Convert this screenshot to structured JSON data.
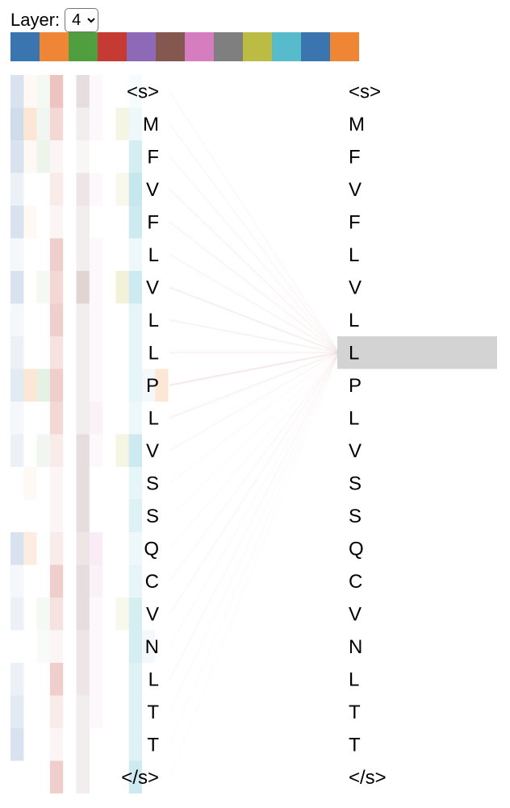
{
  "layer_control": {
    "label": "Layer:",
    "options": [
      "4"
    ],
    "selected": "4"
  },
  "heads": [
    {
      "color": "#3b75af"
    },
    {
      "color": "#ef8636"
    },
    {
      "color": "#519e3e"
    },
    {
      "color": "#c53a32"
    },
    {
      "color": "#8d69b8"
    },
    {
      "color": "#84584e"
    },
    {
      "color": "#d57dbe"
    },
    {
      "color": "#7f7f7f"
    },
    {
      "color": "#bcbc45"
    },
    {
      "color": "#58bbcc"
    },
    {
      "color": "#3b75af"
    },
    {
      "color": "#ef8636"
    }
  ],
  "left_tokens": [
    "<s>",
    "M",
    "F",
    "V",
    "F",
    "L",
    "V",
    "L",
    "L",
    "P",
    "L",
    "V",
    "S",
    "S",
    "Q",
    "C",
    "V",
    "N",
    "L",
    "T",
    "T",
    "</s>"
  ],
  "right_tokens": [
    "<s>",
    "M",
    "F",
    "V",
    "F",
    "L",
    "V",
    "L",
    "L",
    "P",
    "L",
    "V",
    "S",
    "S",
    "Q",
    "C",
    "V",
    "N",
    "L",
    "T",
    "T",
    "</s>"
  ],
  "selected_right_index": 8,
  "selection_color": "#d3d3d3",
  "attention": {
    "line_color": "#e9c9c9",
    "weights_to_selected": [
      0.1,
      0.12,
      0.12,
      0.16,
      0.18,
      0.16,
      0.3,
      0.22,
      0.24,
      0.4,
      0.22,
      0.12,
      0.08,
      0.06,
      0.08,
      0.1,
      0.12,
      0.08,
      0.1,
      0.08,
      0.06,
      0.06
    ],
    "cell_alpha": [
      [
        0.2,
        0.05,
        0.06,
        0.3,
        0.0,
        0.2,
        0.05,
        0.0,
        0.0,
        0.05,
        0.0,
        0.0
      ],
      [
        0.25,
        0.2,
        0.08,
        0.2,
        0.0,
        0.1,
        0.05,
        0.0,
        0.15,
        0.1,
        0.0,
        0.0
      ],
      [
        0.2,
        0.05,
        0.1,
        0.05,
        0.0,
        0.05,
        0.0,
        0.0,
        0.0,
        0.25,
        0.0,
        0.0
      ],
      [
        0.1,
        0.0,
        0.0,
        0.1,
        0.0,
        0.15,
        0.05,
        0.0,
        0.1,
        0.35,
        0.0,
        0.0
      ],
      [
        0.2,
        0.05,
        0.0,
        0.05,
        0.0,
        0.1,
        0.0,
        0.0,
        0.0,
        0.3,
        0.0,
        0.0
      ],
      [
        0.05,
        0.0,
        0.0,
        0.25,
        0.0,
        0.1,
        0.05,
        0.0,
        0.0,
        0.1,
        0.0,
        0.0
      ],
      [
        0.2,
        0.0,
        0.06,
        0.2,
        0.0,
        0.25,
        0.05,
        0.0,
        0.2,
        0.3,
        0.0,
        0.0
      ],
      [
        0.05,
        0.0,
        0.0,
        0.25,
        0.0,
        0.1,
        0.05,
        0.0,
        0.0,
        0.15,
        0.0,
        0.0
      ],
      [
        0.1,
        0.0,
        0.0,
        0.15,
        0.0,
        0.1,
        0.05,
        0.0,
        0.0,
        0.15,
        0.0,
        0.0
      ],
      [
        0.15,
        0.2,
        0.15,
        0.25,
        0.0,
        0.1,
        0.05,
        0.0,
        0.0,
        0.15,
        0.05,
        0.2
      ],
      [
        0.05,
        0.0,
        0.0,
        0.2,
        0.0,
        0.1,
        0.1,
        0.0,
        0.0,
        0.1,
        0.0,
        0.0
      ],
      [
        0.1,
        0.0,
        0.08,
        0.1,
        0.0,
        0.2,
        0.05,
        0.0,
        0.15,
        0.3,
        0.0,
        0.0
      ],
      [
        0.0,
        0.05,
        0.0,
        0.05,
        0.0,
        0.2,
        0.0,
        0.0,
        0.0,
        0.15,
        0.0,
        0.0
      ],
      [
        0.0,
        0.0,
        0.0,
        0.05,
        0.0,
        0.2,
        0.0,
        0.0,
        0.0,
        0.2,
        0.0,
        0.0
      ],
      [
        0.2,
        0.15,
        0.0,
        0.1,
        0.0,
        0.15,
        0.15,
        0.0,
        0.0,
        0.1,
        0.0,
        0.0
      ],
      [
        0.05,
        0.0,
        0.0,
        0.25,
        0.0,
        0.2,
        0.1,
        0.0,
        0.0,
        0.15,
        0.0,
        0.0
      ],
      [
        0.1,
        0.0,
        0.06,
        0.15,
        0.0,
        0.2,
        0.05,
        0.0,
        0.1,
        0.25,
        0.0,
        0.0
      ],
      [
        0.0,
        0.0,
        0.04,
        0.05,
        0.0,
        0.15,
        0.05,
        0.0,
        0.0,
        0.25,
        0.05,
        0.0
      ],
      [
        0.1,
        0.0,
        0.0,
        0.25,
        0.0,
        0.15,
        0.05,
        0.0,
        0.0,
        0.2,
        0.0,
        0.0
      ],
      [
        0.15,
        0.0,
        0.0,
        0.1,
        0.0,
        0.1,
        0.05,
        0.0,
        0.0,
        0.2,
        0.0,
        0.0
      ],
      [
        0.2,
        0.0,
        0.0,
        0.05,
        0.0,
        0.1,
        0.0,
        0.0,
        0.0,
        0.2,
        0.0,
        0.0
      ],
      [
        0.0,
        0.0,
        0.0,
        0.25,
        0.0,
        0.1,
        0.0,
        0.0,
        0.0,
        0.3,
        0.0,
        0.0
      ]
    ]
  }
}
